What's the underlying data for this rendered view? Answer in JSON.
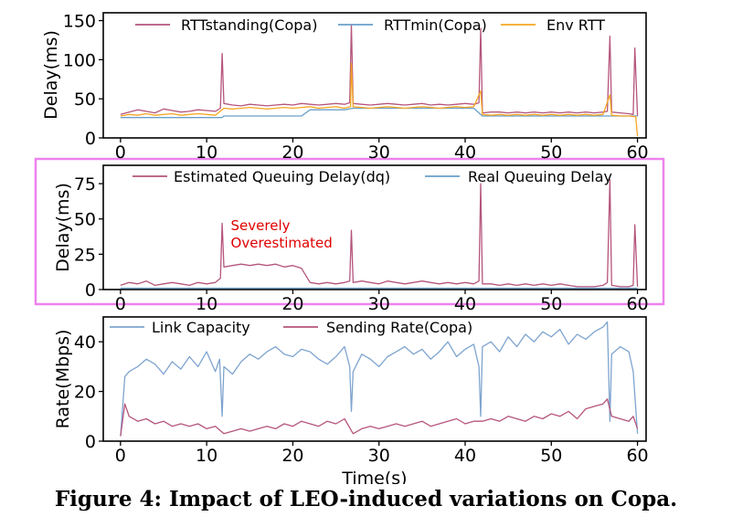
{
  "caption": "Figure 4: Impact of LEO-induced variations on Copa.",
  "highlight_color": "#ee82ee",
  "chart_data": [
    {
      "type": "line",
      "ylabel": "Delay(ms)",
      "xlabel": "",
      "xlim": [
        -2,
        61
      ],
      "ylim": [
        0,
        160
      ],
      "xticks": [
        "0",
        "10",
        "20",
        "30",
        "40",
        "50",
        "60"
      ],
      "yticks": [
        "0",
        "50",
        "100",
        "150"
      ],
      "legend_position": "top",
      "series": [
        {
          "name": "RTTstanding(Copa)",
          "color": "#b5557c",
          "x": [
            0,
            1,
            2,
            3,
            4,
            5,
            6,
            7,
            8,
            9,
            10,
            11,
            11.6,
            11.8,
            12,
            13,
            14,
            15,
            16,
            17,
            18,
            19,
            20,
            21,
            22,
            23,
            24,
            25,
            26,
            26.6,
            26.8,
            27,
            28,
            29,
            30,
            31,
            32,
            33,
            34,
            35,
            36,
            37,
            38,
            39,
            40,
            41,
            41.6,
            41.8,
            42,
            43,
            44,
            45,
            46,
            47,
            48,
            49,
            50,
            51,
            52,
            53,
            54,
            55,
            56,
            56.5,
            56.8,
            57,
            58,
            59,
            59.5,
            59.7,
            60
          ],
          "y": [
            30,
            33,
            36,
            34,
            32,
            37,
            35,
            33,
            34,
            36,
            35,
            34,
            38,
            108,
            44,
            42,
            41,
            43,
            42,
            41,
            42,
            43,
            42,
            44,
            43,
            42,
            43,
            44,
            43,
            45,
            145,
            44,
            43,
            42,
            43,
            44,
            43,
            42,
            43,
            44,
            42,
            43,
            42,
            43,
            44,
            43,
            45,
            140,
            32,
            33,
            33,
            32,
            33,
            32,
            33,
            32,
            33,
            32,
            33,
            32,
            33,
            32,
            33,
            34,
            130,
            33,
            32,
            31,
            30,
            115,
            28
          ]
        },
        {
          "name": "RTTmin(Copa)",
          "color": "#6a9fc9",
          "x": [
            0,
            1,
            2,
            3,
            4,
            5,
            6,
            7,
            8,
            9,
            10,
            11,
            11.8,
            12,
            13,
            14,
            15,
            16,
            17,
            18,
            19,
            20,
            21,
            22,
            23,
            24,
            25,
            26,
            27,
            28,
            29,
            30,
            31,
            32,
            33,
            34,
            35,
            36,
            37,
            38,
            39,
            40,
            41,
            42,
            43,
            44,
            45,
            46,
            47,
            48,
            49,
            50,
            51,
            52,
            53,
            54,
            55,
            56,
            57,
            58,
            59,
            60
          ],
          "y": [
            26,
            26,
            26,
            26,
            26,
            26,
            26,
            26,
            26,
            26,
            26,
            26,
            26,
            28,
            28,
            28,
            28,
            28,
            28,
            28,
            28,
            28,
            28,
            36,
            36,
            36,
            36,
            36,
            38,
            38,
            38,
            38,
            38,
            38,
            38,
            38,
            38,
            38,
            38,
            38,
            38,
            38,
            38,
            28,
            28,
            28,
            28,
            28,
            28,
            28,
            28,
            28,
            28,
            28,
            28,
            28,
            28,
            28,
            28,
            28,
            28,
            28
          ]
        },
        {
          "name": "Env RTT",
          "color": "#f5a623",
          "x": [
            0,
            1,
            2,
            3,
            4,
            5,
            6,
            7,
            8,
            9,
            10,
            11,
            12,
            13,
            14,
            15,
            16,
            17,
            18,
            19,
            20,
            21,
            22,
            23,
            24,
            25,
            26,
            26.7,
            26.8,
            27,
            28,
            29,
            30,
            31,
            32,
            33,
            34,
            35,
            36,
            37,
            38,
            39,
            40,
            41,
            41.8,
            42,
            43,
            44,
            45,
            46,
            47,
            48,
            49,
            50,
            51,
            52,
            53,
            54,
            55,
            56,
            56.8,
            57,
            58,
            59,
            59.8,
            60
          ],
          "y": [
            28,
            30,
            29,
            31,
            29,
            30,
            31,
            29,
            30,
            31,
            30,
            29,
            38,
            37,
            38,
            39,
            38,
            37,
            38,
            39,
            38,
            39,
            40,
            38,
            39,
            40,
            38,
            40,
            95,
            40,
            39,
            38,
            39,
            40,
            39,
            38,
            39,
            40,
            39,
            38,
            39,
            40,
            39,
            40,
            60,
            30,
            29,
            30,
            29,
            30,
            29,
            30,
            29,
            30,
            29,
            30,
            29,
            30,
            29,
            30,
            55,
            29,
            28,
            28,
            27,
            2
          ]
        }
      ]
    },
    {
      "type": "line",
      "ylabel": "Delay(ms)",
      "xlabel": "",
      "xlim": [
        -2,
        61
      ],
      "ylim": [
        0,
        88
      ],
      "xticks": [
        "0",
        "10",
        "20",
        "30",
        "40",
        "50",
        "60"
      ],
      "yticks": [
        "0",
        "25",
        "50",
        "75"
      ],
      "legend_position": "top",
      "annotation": {
        "line1": "Severely",
        "line2": "Overestimated",
        "color": "#e00000",
        "x": 12.8,
        "y": 42
      },
      "series": [
        {
          "name": "Estimated Queuing Delay(dq)",
          "color": "#b5557c",
          "x": [
            0,
            1,
            2,
            3,
            4,
            5,
            6,
            7,
            8,
            9,
            10,
            11,
            11.6,
            11.8,
            12,
            13,
            14,
            15,
            16,
            17,
            18,
            19,
            20,
            21,
            22,
            23,
            24,
            25,
            26,
            26.6,
            26.8,
            27,
            28,
            29,
            30,
            31,
            32,
            33,
            34,
            35,
            36,
            37,
            38,
            39,
            40,
            41,
            41.6,
            41.8,
            42,
            43,
            44,
            45,
            46,
            47,
            48,
            49,
            50,
            51,
            52,
            53,
            54,
            55,
            56,
            56.5,
            56.8,
            57,
            58,
            59,
            59.5,
            59.7,
            60
          ],
          "y": [
            3,
            5,
            4,
            6,
            3,
            4,
            5,
            4,
            3,
            5,
            4,
            5,
            8,
            47,
            16,
            17,
            18,
            17,
            18,
            17,
            18,
            16,
            17,
            15,
            5,
            4,
            5,
            4,
            5,
            6,
            42,
            5,
            6,
            5,
            4,
            6,
            5,
            4,
            5,
            6,
            5,
            4,
            5,
            4,
            5,
            4,
            6,
            75,
            4,
            4,
            3,
            4,
            3,
            4,
            3,
            4,
            3,
            4,
            3,
            2,
            2,
            2,
            3,
            5,
            78,
            3,
            2,
            2,
            3,
            46,
            2
          ]
        },
        {
          "name": "Real Queuing Delay",
          "color": "#6a9fc9",
          "x": [
            0,
            5,
            10,
            15,
            20,
            25,
            30,
            35,
            40,
            45,
            50,
            55,
            60
          ],
          "y": [
            1,
            1,
            1,
            1,
            1,
            1,
            1,
            1,
            1,
            1,
            1,
            1,
            1
          ]
        }
      ]
    },
    {
      "type": "line",
      "ylabel": "Rate(Mbps)",
      "xlabel": "Time(s)",
      "xlim": [
        -2,
        61
      ],
      "ylim": [
        0,
        50
      ],
      "xticks": [
        "0",
        "10",
        "20",
        "30",
        "40",
        "50",
        "60"
      ],
      "yticks": [
        "0",
        "20",
        "40"
      ],
      "legend_position": "top",
      "series": [
        {
          "name": "Link Capacity",
          "color": "#7ea4cf",
          "x": [
            0,
            0.5,
            1,
            2,
            3,
            4,
            5,
            6,
            7,
            8,
            9,
            10,
            11,
            11.5,
            11.8,
            12,
            13,
            14,
            15,
            16,
            17,
            18,
            19,
            20,
            21,
            22,
            23,
            24,
            25,
            26,
            26.6,
            26.8,
            27,
            28,
            29,
            30,
            31,
            32,
            33,
            34,
            35,
            36,
            37,
            38,
            39,
            40,
            41,
            41.6,
            41.8,
            42,
            43,
            44,
            45,
            46,
            47,
            48,
            49,
            50,
            51,
            52,
            53,
            54,
            55,
            56,
            56.5,
            56.8,
            57,
            58,
            59,
            59.5,
            60
          ],
          "y": [
            2,
            26,
            28,
            30,
            33,
            31,
            27,
            32,
            29,
            34,
            30,
            36,
            28,
            33,
            10,
            30,
            27,
            32,
            35,
            33,
            36,
            38,
            35,
            34,
            37,
            36,
            33,
            31,
            34,
            38,
            30,
            12,
            28,
            35,
            33,
            30,
            34,
            36,
            38,
            35,
            37,
            33,
            36,
            40,
            34,
            37,
            39,
            30,
            10,
            38,
            40,
            36,
            42,
            38,
            43,
            40,
            44,
            42,
            45,
            39,
            43,
            41,
            44,
            46,
            48,
            8,
            35,
            38,
            36,
            28,
            3
          ]
        },
        {
          "name": "Sending Rate(Copa)",
          "color": "#b5557c",
          "x": [
            0,
            0.5,
            1,
            2,
            3,
            4,
            5,
            6,
            7,
            8,
            9,
            10,
            11,
            12,
            13,
            14,
            15,
            16,
            17,
            18,
            19,
            20,
            21,
            22,
            23,
            24,
            25,
            26,
            27,
            28,
            29,
            30,
            31,
            32,
            33,
            34,
            35,
            36,
            37,
            38,
            39,
            40,
            41,
            42,
            43,
            44,
            45,
            46,
            47,
            48,
            49,
            50,
            51,
            52,
            53,
            54,
            55,
            56,
            56.5,
            57,
            58,
            59,
            59.5,
            60
          ],
          "y": [
            2,
            15,
            10,
            8,
            9,
            7,
            8,
            6,
            7,
            6,
            7,
            5,
            6,
            3,
            4,
            5,
            4,
            5,
            6,
            5,
            7,
            6,
            8,
            7,
            6,
            8,
            7,
            9,
            3,
            5,
            6,
            5,
            6,
            7,
            6,
            7,
            8,
            6,
            7,
            8,
            9,
            7,
            8,
            8,
            9,
            8,
            10,
            9,
            8,
            10,
            9,
            11,
            10,
            12,
            9,
            13,
            14,
            15,
            17,
            10,
            9,
            8,
            10,
            5
          ]
        }
      ]
    }
  ]
}
